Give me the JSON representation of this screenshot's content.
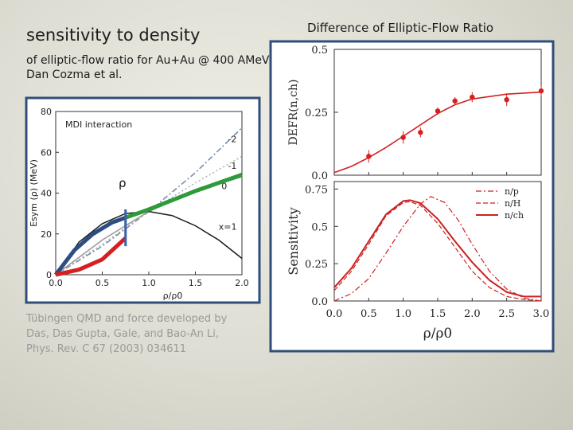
{
  "slide": {
    "title": "sensitivity to density",
    "subtitle": "of elliptic-flow ratio for Au+Au @ 400 AMeV\nDan Cozma et al.",
    "right_title": "Difference of Elliptic-Flow Ratio",
    "credit": "Tübingen QMD and force developed by\nDas, Das Gupta, Gale, and Bao-An Li,\nPhys. Rev. C 67 (2003) 034611",
    "rho_label": "ρ"
  },
  "chart_data": [
    {
      "type": "line",
      "panel": "left",
      "title": "",
      "inner_label": "MDI interaction",
      "xlabel": "ρ/ρ0",
      "ylabel": "Esym (ρ) (MeV)",
      "xlim": [
        0,
        2.0
      ],
      "ylim": [
        0,
        80
      ],
      "xticks": [
        "0.0",
        "0.5",
        "1.0",
        "1.5",
        "2.0"
      ],
      "yticks": [
        "0",
        "20",
        "40",
        "60",
        "80"
      ],
      "series": [
        {
          "name": "x=-2",
          "label": "-2",
          "color": "#6f86aa",
          "style": "dashdot",
          "x": [
            0,
            0.5,
            1.0,
            1.5,
            2.0
          ],
          "y": [
            0,
            14,
            31,
            50,
            72
          ]
        },
        {
          "name": "x=-1",
          "label": "-1",
          "color": "#b0b0b0",
          "style": "dotted",
          "x": [
            0,
            0.5,
            1.0,
            1.5,
            2.0
          ],
          "y": [
            0,
            15,
            31,
            45,
            58
          ]
        },
        {
          "name": "x=0",
          "label": "0",
          "color": "#999999",
          "style": "solid",
          "x": [
            0,
            0.5,
            1.0,
            1.5,
            2.0
          ],
          "y": [
            0,
            17,
            31,
            41,
            48
          ]
        },
        {
          "name": "x=1",
          "label": "x=1",
          "color": "#1a1a1a",
          "style": "solid",
          "x": [
            0,
            0.25,
            0.5,
            0.75,
            1.0,
            1.25,
            1.5,
            1.75,
            2.0
          ],
          "y": [
            0,
            16,
            25,
            30,
            31,
            29,
            24,
            17,
            8
          ]
        },
        {
          "name": "stiff-fit",
          "label": "",
          "color": "#2c4d82",
          "style": "thick",
          "x": [
            0,
            0.2,
            0.4,
            0.6,
            0.75
          ],
          "y": [
            0,
            12,
            20,
            25.5,
            28
          ]
        },
        {
          "name": "soft-fit",
          "label": "",
          "color": "#d42020",
          "style": "thick",
          "x": [
            0,
            0.25,
            0.5,
            0.75
          ],
          "y": [
            0,
            2.5,
            7.5,
            18
          ]
        },
        {
          "name": "linear-fit",
          "label": "",
          "color": "#2e9a3a",
          "style": "thick",
          "x": [
            0.75,
            1.0,
            1.5,
            2.0
          ],
          "y": [
            28,
            32,
            41,
            49
          ]
        }
      ],
      "marker_x": 0.75
    },
    {
      "type": "scatter",
      "panel": "upper-right",
      "title": "Difference of Elliptic-Flow Ratio",
      "xlabel": "",
      "ylabel": "DEFR(n,ch)",
      "xlim": [
        0,
        3.0
      ],
      "ylim": [
        0,
        0.5
      ],
      "yticks": [
        "0.0",
        "0.25",
        "0.5"
      ],
      "points": {
        "x": [
          0.5,
          1.0,
          1.25,
          1.5,
          1.75,
          2.0,
          2.5,
          3.0
        ],
        "y": [
          0.075,
          0.15,
          0.17,
          0.255,
          0.295,
          0.31,
          0.3,
          0.335
        ],
        "err": [
          0.025,
          0.025,
          0.02,
          0.015,
          0.015,
          0.02,
          0.025,
          0.02
        ]
      },
      "fit": {
        "x": [
          0,
          0.25,
          0.5,
          0.75,
          1.0,
          1.25,
          1.5,
          1.75,
          2.0,
          2.5,
          3.0
        ],
        "y": [
          0.01,
          0.035,
          0.07,
          0.11,
          0.155,
          0.2,
          0.245,
          0.28,
          0.303,
          0.322,
          0.33
        ]
      }
    },
    {
      "type": "line",
      "panel": "lower-right",
      "title": "",
      "xlabel": "ρ/ρ0",
      "ylabel": "Sensitivity",
      "xlim": [
        0,
        3.0
      ],
      "ylim": [
        0,
        0.8
      ],
      "xticks": [
        "0.0",
        "0.5",
        "1.0",
        "1.5",
        "2.0",
        "2.5",
        "3.0"
      ],
      "yticks": [
        "0.0",
        "0.25",
        "0.5",
        "0.75"
      ],
      "legend_position": "top-right",
      "series": [
        {
          "name": "n/p",
          "style": "dashdot",
          "color": "#cc2020",
          "x": [
            0,
            0.25,
            0.5,
            0.75,
            1.0,
            1.25,
            1.4,
            1.6,
            1.8,
            2.0,
            2.25,
            2.5,
            2.75,
            3.0
          ],
          "y": [
            0.0,
            0.05,
            0.15,
            0.32,
            0.5,
            0.65,
            0.7,
            0.66,
            0.54,
            0.38,
            0.2,
            0.08,
            0.02,
            0.0
          ]
        },
        {
          "name": "n/H",
          "style": "dashed",
          "color": "#cc2020",
          "x": [
            0,
            0.25,
            0.5,
            0.75,
            1.0,
            1.1,
            1.25,
            1.5,
            1.75,
            2.0,
            2.25,
            2.5,
            2.75,
            3.0
          ],
          "y": [
            0.07,
            0.2,
            0.38,
            0.57,
            0.66,
            0.665,
            0.64,
            0.52,
            0.36,
            0.2,
            0.09,
            0.03,
            0.01,
            0.0
          ]
        },
        {
          "name": "n/ch",
          "style": "solid",
          "color": "#cc2020",
          "x": [
            0,
            0.25,
            0.5,
            0.75,
            1.0,
            1.1,
            1.25,
            1.5,
            1.75,
            2.0,
            2.25,
            2.5,
            2.75,
            3.0
          ],
          "y": [
            0.09,
            0.22,
            0.4,
            0.58,
            0.67,
            0.675,
            0.655,
            0.55,
            0.4,
            0.26,
            0.14,
            0.06,
            0.03,
            0.03
          ]
        }
      ]
    }
  ]
}
